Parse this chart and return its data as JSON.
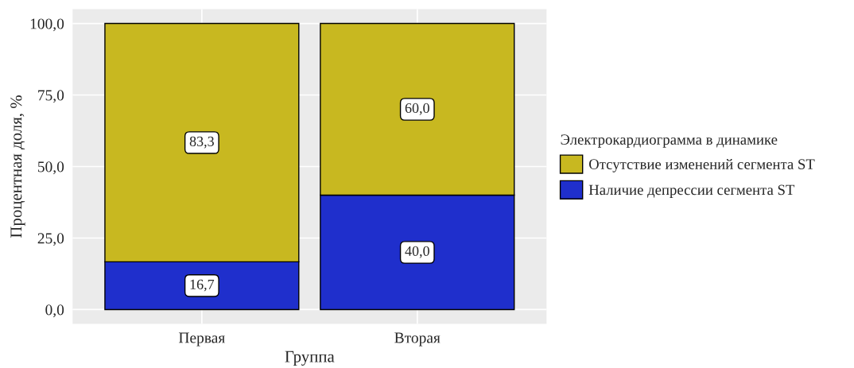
{
  "chart_data": {
    "type": "bar",
    "stacked": true,
    "categories": [
      "Первая",
      "Вторая"
    ],
    "xlabel": "Группа",
    "ylabel": "Процентная доля, %",
    "legend_title": "Электрокардиограмма в динамике",
    "series": [
      {
        "name": "Наличие депрессии сегмента ST",
        "color": "#1f2fcc",
        "values": [
          16.7,
          40.0
        ],
        "value_labels": [
          "16,7",
          "40,0"
        ]
      },
      {
        "name": "Отсутствие изменений сегмента ST",
        "color": "#c8b820",
        "values": [
          83.3,
          60.0
        ],
        "value_labels": [
          "83,3",
          "60,0"
        ]
      }
    ],
    "ylim": [
      -5,
      105
    ],
    "yticks": [
      {
        "value": 0,
        "label": "0,0"
      },
      {
        "value": 25,
        "label": "25,0"
      },
      {
        "value": 50,
        "label": "50,0"
      },
      {
        "value": 75,
        "label": "75,0"
      },
      {
        "value": 100,
        "label": "100,0"
      }
    ],
    "grid": true,
    "legend": "right"
  }
}
